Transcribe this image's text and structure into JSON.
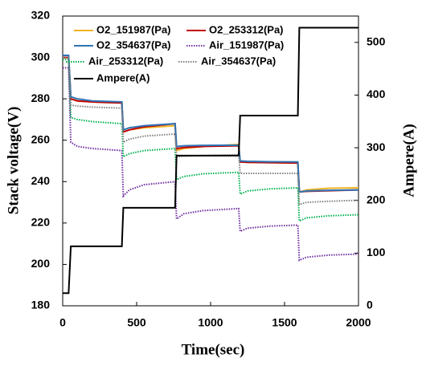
{
  "chart_data": {
    "type": "line",
    "xlabel": "Time(sec)",
    "ylabel": "Stack voltage(V)",
    "y2label": "Ampere(A)",
    "xlim": [
      0,
      2000
    ],
    "xticks": [
      0,
      500,
      1000,
      1500,
      2000
    ],
    "ylim": [
      180,
      320
    ],
    "yticks": [
      180,
      200,
      220,
      240,
      260,
      280,
      300,
      320
    ],
    "y2lim": [
      0,
      550
    ],
    "y2ticks": [
      0,
      100,
      200,
      300,
      400,
      500
    ],
    "x": [
      0,
      40,
      55,
      100,
      200,
      400,
      410,
      450,
      550,
      760,
      770,
      820,
      950,
      1190,
      1200,
      1250,
      1400,
      1590,
      1600,
      1650,
      1800,
      2000
    ],
    "series": [
      {
        "name": "O2_151987(Pa)",
        "color": "#f0b323",
        "style": "solid",
        "values": [
          300,
          300,
          280,
          279,
          278.5,
          278,
          264,
          265,
          266,
          267,
          255,
          256,
          257,
          258,
          249.5,
          249.3,
          249.2,
          249,
          235,
          236,
          236.8,
          237
        ]
      },
      {
        "name": "O2_253312(Pa)",
        "color": "#c00000",
        "style": "solid",
        "values": [
          300,
          300,
          280,
          279,
          278.5,
          278,
          264,
          265,
          266.5,
          268,
          256,
          256.5,
          257,
          257.3,
          249.5,
          249.3,
          249.2,
          249,
          235,
          235.3,
          235.6,
          236
        ]
      },
      {
        "name": "O2_354637(Pa)",
        "color": "#2e75b6",
        "style": "solid",
        "values": [
          301,
          301,
          281,
          280,
          279,
          278.5,
          265,
          266,
          267,
          268,
          257,
          257.3,
          257.5,
          257.6,
          250,
          249.8,
          249.6,
          249.5,
          235,
          235.5,
          235.8,
          236
        ]
      },
      {
        "name": "Air_151987(Pa)",
        "color": "#7030a0",
        "style": "dotted",
        "values": [
          295,
          295,
          259,
          257,
          256,
          255,
          233,
          236,
          238.5,
          240,
          222,
          224.5,
          226,
          227,
          216,
          217.5,
          218.5,
          219,
          202,
          203.5,
          204.5,
          205
        ]
      },
      {
        "name": "Air_253312(Pa)",
        "color": "#00b050",
        "style": "dotted",
        "values": [
          299,
          299,
          271,
          270,
          269,
          268,
          252,
          253.5,
          255,
          256,
          241,
          242.5,
          243.8,
          244.5,
          234,
          235.5,
          236.5,
          237,
          221,
          222.5,
          223.5,
          224
        ]
      },
      {
        "name": "Air_354637(Pa)",
        "color": "#808080",
        "style": "dotted",
        "values": [
          300,
          300,
          277,
          276.5,
          276,
          275.5,
          259,
          260.5,
          262,
          263,
          252,
          252.3,
          252.6,
          253,
          244,
          244,
          244,
          244,
          229,
          230,
          230.5,
          231
        ]
      },
      {
        "name": "Ampere(A)",
        "color": "#000000",
        "style": "solid",
        "axis": "y2",
        "values": [
          24,
          24,
          113,
          113,
          113,
          113,
          186,
          186,
          186,
          186,
          285,
          285,
          285,
          285,
          361,
          361,
          361,
          361,
          528,
          528,
          528,
          528
        ]
      }
    ]
  }
}
